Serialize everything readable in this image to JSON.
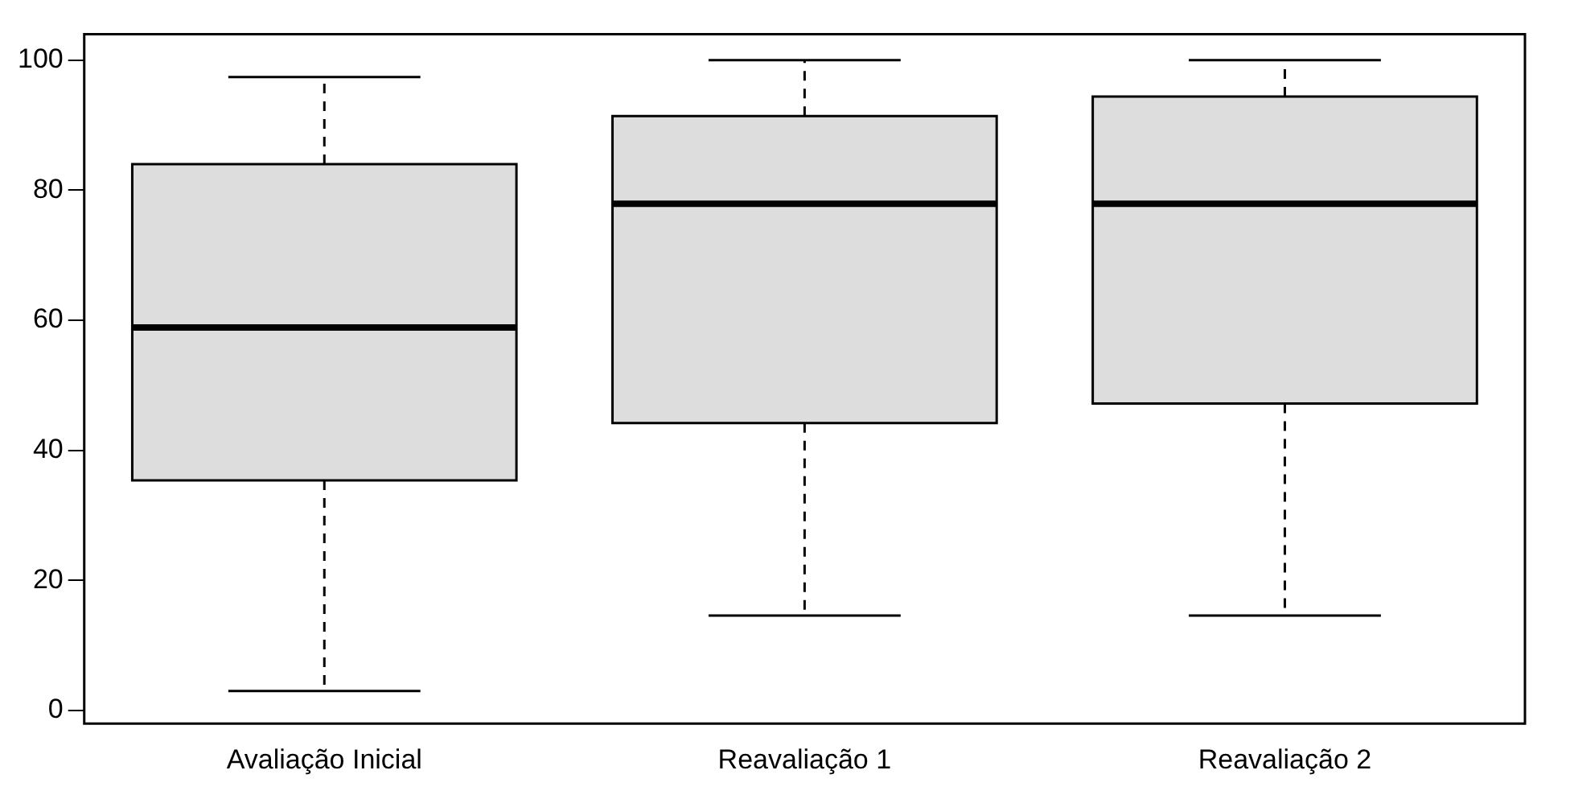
{
  "chart_data": {
    "type": "box",
    "categories": [
      "Avaliação Inicial",
      "Reavaliação 1",
      "Reavaliação 2"
    ],
    "color": "#dddddd",
    "boxes": [
      {
        "low": 3,
        "q1": 35.4,
        "median": 58.9,
        "q3": 84,
        "high": 97.4
      },
      {
        "low": 14.6,
        "q1": 44.2,
        "median": 77.9,
        "q3": 91.4,
        "high": 100
      },
      {
        "low": 14.6,
        "q1": 47.2,
        "median": 77.9,
        "q3": 94.4,
        "high": 100
      }
    ],
    "ylim": [
      -2,
      104
    ],
    "yticks": [
      0,
      20,
      40,
      60,
      80,
      100
    ],
    "grid": false
  }
}
